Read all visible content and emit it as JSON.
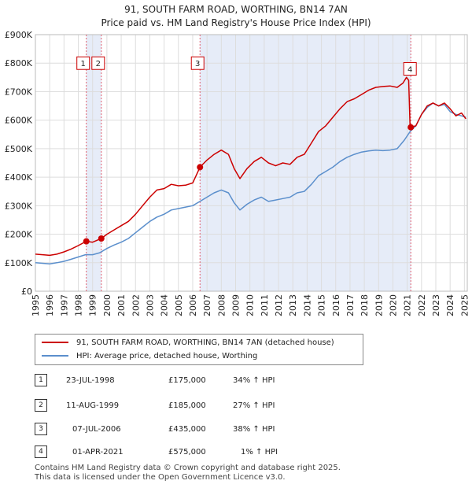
{
  "chart_data": {
    "type": "line",
    "title": "91, SOUTH FARM ROAD, WORTHING, BN14 7AN",
    "subtitle": "Price paid vs. HM Land Registry's House Price Index (HPI)",
    "xlabel": "",
    "ylabel": "",
    "xlim": [
      1995,
      2025.2
    ],
    "ylim": [
      0,
      900000
    ],
    "x_ticks": [
      "1995",
      "1996",
      "1997",
      "1998",
      "1999",
      "2000",
      "2001",
      "2002",
      "2003",
      "2004",
      "2005",
      "2006",
      "2007",
      "2008",
      "2009",
      "2010",
      "2011",
      "2012",
      "2013",
      "2014",
      "2015",
      "2016",
      "2017",
      "2018",
      "2019",
      "2020",
      "2021",
      "2022",
      "2023",
      "2024",
      "2025"
    ],
    "y_ticks": [
      {
        "value": 0,
        "label": "£0"
      },
      {
        "value": 100000,
        "label": "£100K"
      },
      {
        "value": 200000,
        "label": "£200K"
      },
      {
        "value": 300000,
        "label": "£300K"
      },
      {
        "value": 400000,
        "label": "£400K"
      },
      {
        "value": 500000,
        "label": "£500K"
      },
      {
        "value": 600000,
        "label": "£600K"
      },
      {
        "value": 700000,
        "label": "£700K"
      },
      {
        "value": 800000,
        "label": "£800K"
      },
      {
        "value": 900000,
        "label": "£900K"
      }
    ],
    "grid": true,
    "colors": {
      "property": "#cc0000",
      "hpi": "#5b8fcc",
      "shade": "#e6ecf8",
      "marker": "#cc0000",
      "vline": "#e06070"
    },
    "series": [
      {
        "name": "91, SOUTH FARM ROAD, WORTHING, BN14 7AN (detached house)",
        "color": "#cc0000",
        "points": [
          [
            1995.0,
            130000
          ],
          [
            1995.5,
            128000
          ],
          [
            1996.0,
            126000
          ],
          [
            1996.5,
            130000
          ],
          [
            1997.0,
            138000
          ],
          [
            1997.5,
            148000
          ],
          [
            1998.0,
            160000
          ],
          [
            1998.56,
            175000
          ],
          [
            1999.0,
            172000
          ],
          [
            1999.61,
            185000
          ],
          [
            2000.0,
            200000
          ],
          [
            2000.5,
            215000
          ],
          [
            2001.0,
            230000
          ],
          [
            2001.5,
            245000
          ],
          [
            2002.0,
            270000
          ],
          [
            2002.5,
            300000
          ],
          [
            2003.0,
            330000
          ],
          [
            2003.5,
            355000
          ],
          [
            2004.0,
            360000
          ],
          [
            2004.5,
            375000
          ],
          [
            2005.0,
            370000
          ],
          [
            2005.5,
            372000
          ],
          [
            2006.0,
            380000
          ],
          [
            2006.51,
            435000
          ],
          [
            2007.0,
            460000
          ],
          [
            2007.5,
            480000
          ],
          [
            2008.0,
            495000
          ],
          [
            2008.5,
            480000
          ],
          [
            2008.9,
            430000
          ],
          [
            2009.3,
            395000
          ],
          [
            2009.8,
            430000
          ],
          [
            2010.3,
            455000
          ],
          [
            2010.8,
            470000
          ],
          [
            2011.3,
            450000
          ],
          [
            2011.8,
            440000
          ],
          [
            2012.3,
            450000
          ],
          [
            2012.8,
            445000
          ],
          [
            2013.3,
            470000
          ],
          [
            2013.8,
            480000
          ],
          [
            2014.3,
            520000
          ],
          [
            2014.8,
            560000
          ],
          [
            2015.3,
            580000
          ],
          [
            2015.8,
            610000
          ],
          [
            2016.3,
            640000
          ],
          [
            2016.8,
            665000
          ],
          [
            2017.3,
            675000
          ],
          [
            2017.8,
            690000
          ],
          [
            2018.3,
            705000
          ],
          [
            2018.8,
            715000
          ],
          [
            2019.3,
            718000
          ],
          [
            2019.8,
            720000
          ],
          [
            2020.3,
            715000
          ],
          [
            2020.7,
            730000
          ],
          [
            2020.95,
            750000
          ],
          [
            2021.1,
            740000
          ],
          [
            2021.2,
            575000
          ],
          [
            2021.6,
            580000
          ],
          [
            2022.0,
            620000
          ],
          [
            2022.4,
            650000
          ],
          [
            2022.8,
            660000
          ],
          [
            2023.2,
            650000
          ],
          [
            2023.6,
            660000
          ],
          [
            2024.0,
            640000
          ],
          [
            2024.4,
            615000
          ],
          [
            2024.8,
            625000
          ],
          [
            2025.1,
            605000
          ]
        ]
      },
      {
        "name": "HPI: Average price, detached house, Worthing",
        "color": "#5b8fcc",
        "points": [
          [
            1995.0,
            100000
          ],
          [
            1995.5,
            98000
          ],
          [
            1996.0,
            96000
          ],
          [
            1996.5,
            100000
          ],
          [
            1997.0,
            105000
          ],
          [
            1997.5,
            112000
          ],
          [
            1998.0,
            120000
          ],
          [
            1998.5,
            128000
          ],
          [
            1999.0,
            128000
          ],
          [
            1999.5,
            135000
          ],
          [
            2000.0,
            150000
          ],
          [
            2000.5,
            162000
          ],
          [
            2001.0,
            172000
          ],
          [
            2001.5,
            185000
          ],
          [
            2002.0,
            205000
          ],
          [
            2002.5,
            225000
          ],
          [
            2003.0,
            245000
          ],
          [
            2003.5,
            260000
          ],
          [
            2004.0,
            270000
          ],
          [
            2004.5,
            285000
          ],
          [
            2005.0,
            290000
          ],
          [
            2005.5,
            295000
          ],
          [
            2006.0,
            300000
          ],
          [
            2006.5,
            315000
          ],
          [
            2007.0,
            330000
          ],
          [
            2007.5,
            345000
          ],
          [
            2008.0,
            355000
          ],
          [
            2008.5,
            345000
          ],
          [
            2008.9,
            310000
          ],
          [
            2009.3,
            285000
          ],
          [
            2009.8,
            305000
          ],
          [
            2010.3,
            320000
          ],
          [
            2010.8,
            330000
          ],
          [
            2011.3,
            315000
          ],
          [
            2011.8,
            320000
          ],
          [
            2012.3,
            325000
          ],
          [
            2012.8,
            330000
          ],
          [
            2013.3,
            345000
          ],
          [
            2013.8,
            350000
          ],
          [
            2014.3,
            375000
          ],
          [
            2014.8,
            405000
          ],
          [
            2015.3,
            420000
          ],
          [
            2015.8,
            435000
          ],
          [
            2016.3,
            455000
          ],
          [
            2016.8,
            470000
          ],
          [
            2017.3,
            480000
          ],
          [
            2017.8,
            488000
          ],
          [
            2018.3,
            492000
          ],
          [
            2018.8,
            495000
          ],
          [
            2019.3,
            493000
          ],
          [
            2019.8,
            495000
          ],
          [
            2020.3,
            500000
          ],
          [
            2020.8,
            530000
          ],
          [
            2021.2,
            560000
          ],
          [
            2021.6,
            580000
          ],
          [
            2022.0,
            620000
          ],
          [
            2022.4,
            645000
          ],
          [
            2022.8,
            660000
          ],
          [
            2023.2,
            650000
          ],
          [
            2023.6,
            655000
          ],
          [
            2024.0,
            630000
          ],
          [
            2024.4,
            620000
          ],
          [
            2024.8,
            615000
          ],
          [
            2025.1,
            610000
          ]
        ]
      }
    ],
    "transactions": [
      {
        "id": "1",
        "date": "23-JUL-1998",
        "price": "£175,000",
        "hpi": "34% ↑ HPI",
        "x": 1998.56,
        "value": 175000
      },
      {
        "id": "2",
        "date": "11-AUG-1999",
        "price": "£185,000",
        "hpi": "27% ↑ HPI",
        "x": 1999.61,
        "value": 185000
      },
      {
        "id": "3",
        "date": "07-JUL-2006",
        "price": "£435,000",
        "hpi": "38% ↑ HPI",
        "x": 2006.51,
        "value": 435000
      },
      {
        "id": "4",
        "date": "01-APR-2021",
        "price": "£575,000",
        "hpi": "1% ↑ HPI",
        "x": 2021.25,
        "value": 575000
      }
    ],
    "shaded_periods": [
      [
        1998.56,
        1999.61
      ],
      [
        2006.51,
        2021.25
      ]
    ],
    "marker_label_values": [
      800000,
      800000,
      800000,
      780000
    ]
  },
  "footer": {
    "line1": "Contains HM Land Registry data © Crown copyright and database right 2025.",
    "line2": "This data is licensed under the Open Government Licence v3.0."
  }
}
